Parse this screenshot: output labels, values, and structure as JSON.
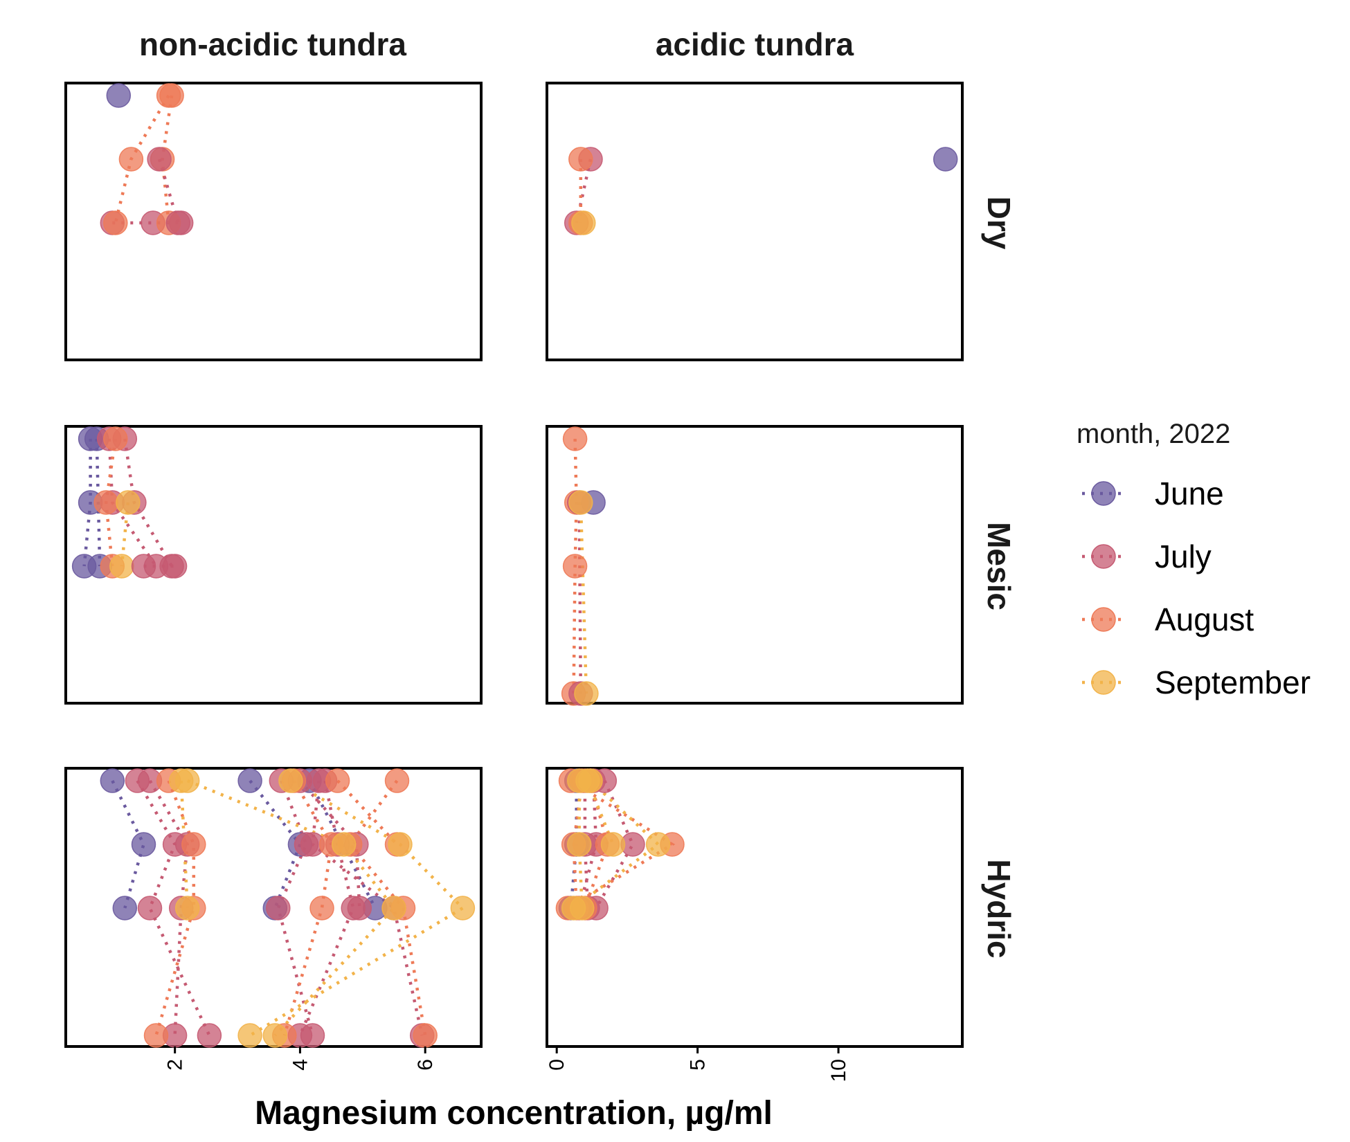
{
  "chart_data": {
    "type": "scatter",
    "xlabel": "Magnesium concentration, µg/ml",
    "ylabel": "",
    "columns": [
      "non-acidic tundra",
      "acidic tundra"
    ],
    "rows": [
      "Dry",
      "Mesic",
      "Hydric"
    ],
    "x_axes": [
      {
        "column": "non-acidic tundra",
        "xlim": [
          0.3,
          6.85
        ],
        "ticks": [
          2,
          4,
          6
        ],
        "tick_labels": [
          "2",
          "4",
          "6"
        ]
      },
      {
        "column": "acidic tundra",
        "xlim": [
          -0.25,
          14.3
        ],
        "ticks": [
          0,
          5,
          10
        ],
        "tick_labels": [
          "0",
          "5",
          "10"
        ]
      }
    ],
    "legend": {
      "title": "month, 2022",
      "position": "right",
      "entries": [
        {
          "label": "June",
          "color": "#6a5a9f"
        },
        {
          "label": "July",
          "color": "#c55a72"
        },
        {
          "label": "August",
          "color": "#ee7a57"
        },
        {
          "label": "September",
          "color": "#f2b34a"
        }
      ]
    },
    "grid": false,
    "marker_alpha": 0.75,
    "panels": [
      {
        "column": "non-acidic tundra",
        "row": "Dry",
        "profiles": [
          {
            "month": "June",
            "points": [
              [
                1.1,
                0.0
              ]
            ]
          },
          {
            "month": "July",
            "points": [
              [
                1.0,
                2.0
              ],
              [
                1.65,
                2.0
              ],
              [
                2.1,
                2.0
              ]
            ]
          },
          {
            "month": "August",
            "points": [
              [
                1.9,
                0.0
              ],
              [
                1.3,
                1.0
              ],
              [
                1.05,
                2.0
              ]
            ],
            "dotted": true
          },
          {
            "month": "August",
            "points": [
              [
                1.95,
                0.0
              ],
              [
                1.8,
                1.0
              ],
              [
                1.9,
                2.0
              ]
            ],
            "dotted": true
          },
          {
            "month": "July",
            "points": [
              [
                1.75,
                1.0
              ],
              [
                2.05,
                2.0
              ]
            ],
            "dotted": true
          }
        ]
      },
      {
        "column": "acidic tundra",
        "row": "Dry",
        "profiles": [
          {
            "month": "June",
            "points": [
              [
                13.8,
                1.0
              ]
            ]
          },
          {
            "month": "July",
            "points": [
              [
                1.2,
                1.0
              ],
              [
                0.7,
                2.0
              ]
            ]
          },
          {
            "month": "August",
            "points": [
              [
                0.85,
                1.0
              ],
              [
                0.85,
                2.0
              ]
            ],
            "dotted": true
          },
          {
            "month": "September",
            "points": [
              [
                0.95,
                2.0
              ]
            ]
          }
        ]
      },
      {
        "column": "non-acidic tundra",
        "row": "Mesic",
        "profiles": [
          {
            "month": "June",
            "points": [
              [
                0.65,
                0.0
              ],
              [
                0.65,
                1.0
              ],
              [
                0.55,
                2.0
              ]
            ],
            "dotted": true
          },
          {
            "month": "June",
            "points": [
              [
                0.75,
                0.0
              ],
              [
                0.8,
                2.0
              ]
            ]
          },
          {
            "month": "July",
            "points": [
              [
                0.95,
                0.0
              ],
              [
                1.0,
                1.0
              ],
              [
                1.7,
                2.0
              ]
            ],
            "dotted": true
          },
          {
            "month": "July",
            "points": [
              [
                1.2,
                0.0
              ],
              [
                1.35,
                1.0
              ],
              [
                1.95,
                2.0
              ]
            ],
            "dotted": true
          },
          {
            "month": "August",
            "points": [
              [
                1.05,
                0.0
              ],
              [
                0.9,
                1.0
              ],
              [
                1.0,
                2.0
              ]
            ],
            "dotted": true
          },
          {
            "month": "September",
            "points": [
              [
                1.25,
                1.0
              ],
              [
                1.15,
                2.0
              ]
            ]
          },
          {
            "month": "July",
            "points": [
              [
                1.5,
                2.0
              ],
              [
                2.0,
                2.0
              ]
            ]
          }
        ]
      },
      {
        "column": "acidic tundra",
        "row": "Mesic",
        "profiles": [
          {
            "month": "June",
            "points": [
              [
                1.3,
                1.0
              ]
            ]
          },
          {
            "month": "August",
            "points": [
              [
                0.65,
                0.0
              ],
              [
                0.7,
                1.0
              ],
              [
                0.65,
                2.0
              ],
              [
                0.6,
                4.0
              ]
            ],
            "dotted": true
          },
          {
            "month": "July",
            "points": [
              [
                0.8,
                1.0
              ],
              [
                0.85,
                4.0
              ]
            ],
            "dotted": true
          },
          {
            "month": "September",
            "points": [
              [
                0.85,
                1.0
              ],
              [
                1.05,
                4.0
              ]
            ]
          }
        ]
      },
      {
        "column": "non-acidic tundra",
        "row": "Hydric",
        "profiles": [
          {
            "month": "June",
            "points": [
              [
                1.0,
                0.0
              ],
              [
                1.5,
                1.0
              ],
              [
                1.2,
                2.0
              ]
            ],
            "dotted": true
          },
          {
            "month": "June",
            "points": [
              [
                3.2,
                0.0
              ],
              [
                4.0,
                1.0
              ],
              [
                3.6,
                2.0
              ]
            ],
            "dotted": true
          },
          {
            "month": "June",
            "points": [
              [
                4.15,
                0.0
              ],
              [
                5.2,
                2.0
              ]
            ],
            "dotted": true
          },
          {
            "month": "July",
            "points": [
              [
                1.4,
                0.0
              ],
              [
                2.0,
                1.0
              ],
              [
                1.6,
                2.0
              ],
              [
                2.55,
                4.0
              ]
            ],
            "dotted": true
          },
          {
            "month": "July",
            "points": [
              [
                1.6,
                0.0
              ],
              [
                2.2,
                1.0
              ],
              [
                2.1,
                2.0
              ],
              [
                2.0,
                4.0
              ]
            ],
            "dotted": true
          },
          {
            "month": "July",
            "points": [
              [
                3.7,
                0.0
              ],
              [
                4.1,
                1.0
              ],
              [
                3.65,
                2.0
              ],
              [
                4.2,
                4.0
              ]
            ],
            "dotted": true
          },
          {
            "month": "July",
            "points": [
              [
                4.4,
                0.0
              ],
              [
                4.6,
                1.0
              ],
              [
                4.85,
                2.0
              ],
              [
                4.0,
                4.0
              ]
            ],
            "dotted": true
          },
          {
            "month": "July",
            "points": [
              [
                4.3,
                0.0
              ],
              [
                4.2,
                1.0
              ],
              [
                5.5,
                2.0
              ],
              [
                5.95,
                4.0
              ]
            ],
            "dotted": true
          },
          {
            "month": "July",
            "points": [
              [
                4.0,
                0.0
              ],
              [
                4.9,
                1.0
              ],
              [
                4.95,
                2.0
              ]
            ],
            "dotted": true
          },
          {
            "month": "August",
            "points": [
              [
                1.9,
                0.0
              ],
              [
                2.3,
                1.0
              ],
              [
                2.3,
                2.0
              ],
              [
                1.7,
                4.0
              ]
            ],
            "dotted": true
          },
          {
            "month": "August",
            "points": [
              [
                3.9,
                0.0
              ],
              [
                4.5,
                1.0
              ],
              [
                4.35,
                2.0
              ],
              [
                3.75,
                4.0
              ]
            ],
            "dotted": true
          },
          {
            "month": "August",
            "points": [
              [
                5.55,
                0.0
              ],
              [
                4.8,
                1.0
              ],
              [
                5.65,
                2.0
              ],
              [
                6.0,
                4.0
              ]
            ],
            "dotted": true
          },
          {
            "month": "August",
            "points": [
              [
                4.6,
                0.0
              ],
              [
                5.55,
                1.0
              ]
            ],
            "dotted": true
          },
          {
            "month": "September",
            "points": [
              [
                2.1,
                0.0
              ],
              [
                2.2,
                2.0
              ]
            ]
          },
          {
            "month": "September",
            "points": [
              [
                3.85,
                0.0
              ],
              [
                5.6,
                1.0
              ],
              [
                6.6,
                2.0
              ],
              [
                3.2,
                4.0
              ]
            ],
            "dotted": true
          },
          {
            "month": "September",
            "points": [
              [
                2.2,
                0.0
              ],
              [
                4.7,
                1.0
              ],
              [
                5.5,
                2.0
              ],
              [
                3.6,
                4.0
              ]
            ],
            "dotted": true
          }
        ]
      },
      {
        "column": "acidic tundra",
        "row": "Hydric",
        "profiles": [
          {
            "month": "June",
            "points": [
              [
                0.7,
                0.0
              ],
              [
                0.7,
                1.0
              ],
              [
                0.5,
                2.0
              ]
            ],
            "dotted": true
          },
          {
            "month": "July",
            "points": [
              [
                1.7,
                0.0
              ],
              [
                2.7,
                1.0
              ],
              [
                1.4,
                2.0
              ]
            ],
            "dotted": true
          },
          {
            "month": "July",
            "points": [
              [
                1.3,
                0.0
              ],
              [
                1.4,
                1.0
              ],
              [
                0.8,
                2.0
              ]
            ],
            "dotted": true
          },
          {
            "month": "July",
            "points": [
              [
                1.0,
                0.0
              ],
              [
                1.0,
                1.0
              ],
              [
                1.1,
                2.0
              ]
            ],
            "dotted": true
          },
          {
            "month": "August",
            "points": [
              [
                0.5,
                0.0
              ],
              [
                4.1,
                1.0
              ],
              [
                0.4,
                2.0
              ]
            ],
            "dotted": true
          },
          {
            "month": "August",
            "points": [
              [
                0.9,
                0.0
              ],
              [
                0.6,
                1.0
              ],
              [
                0.7,
                2.0
              ]
            ],
            "dotted": true
          },
          {
            "month": "August",
            "points": [
              [
                1.2,
                0.0
              ],
              [
                1.8,
                1.0
              ],
              [
                1.0,
                2.0
              ]
            ],
            "dotted": true
          },
          {
            "month": "September",
            "points": [
              [
                1.2,
                0.0
              ],
              [
                3.6,
                1.0
              ],
              [
                0.6,
                2.0
              ]
            ],
            "dotted": true
          },
          {
            "month": "September",
            "points": [
              [
                0.8,
                0.0
              ],
              [
                0.8,
                1.0
              ],
              [
                0.9,
                2.0
              ]
            ],
            "dotted": true
          },
          {
            "month": "September",
            "points": [
              [
                1.1,
                0.0
              ],
              [
                2.0,
                1.0
              ]
            ],
            "dotted": true
          }
        ]
      }
    ]
  }
}
